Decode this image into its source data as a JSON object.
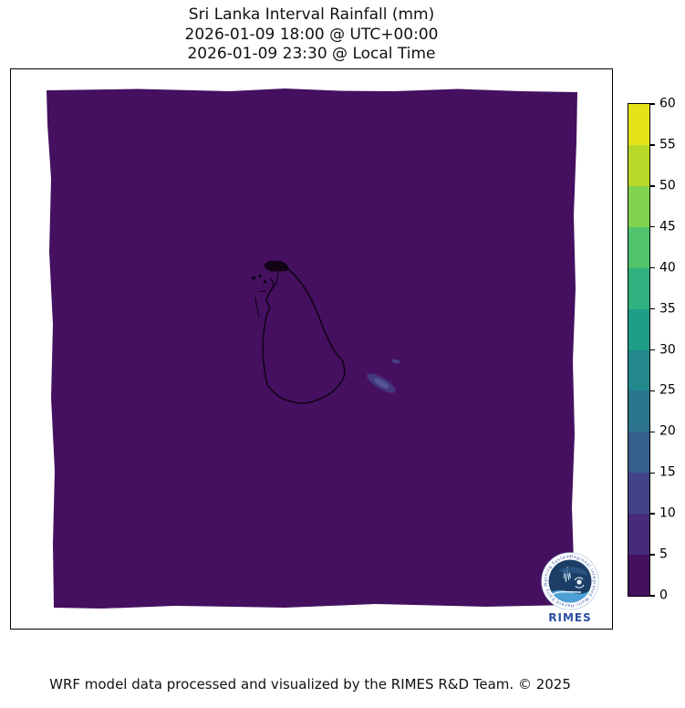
{
  "title": {
    "line1": "Sri Lanka Interval Rainfall (mm)",
    "line2": "2026-01-09 18:00 @ UTC+00:00",
    "line3": "2026-01-09 23:30 @ Local Time"
  },
  "footer": "WRF model data processed and visualized by the RIMES R&D Team. © 2025",
  "logo": {
    "label": "RIMES",
    "ring_text": "Regional Integrated Multi-Hazard Early Warning System"
  },
  "colorbar": {
    "min": 0,
    "max": 60,
    "step": 5,
    "tick_labels": [
      "0",
      "5",
      "10",
      "15",
      "20",
      "25",
      "30",
      "35",
      "40",
      "45",
      "50",
      "55",
      "60"
    ],
    "segment_colors_bottom_to_top": [
      "#451060",
      "#472a7a",
      "#414287",
      "#355e8d",
      "#2b748e",
      "#23898e",
      "#1e9d89",
      "#2eb17e",
      "#50c46a",
      "#81d34d",
      "#bada2b",
      "#e6e419"
    ]
  },
  "chart_data": {
    "type": "heatmap",
    "title": "Sri Lanka Interval Rainfall (mm)",
    "valid_time_utc": "2026-01-09 18:00 @ UTC+00:00",
    "valid_time_local": "2026-01-09 23:30 @ Local Time",
    "units": "mm",
    "colormap": "viridis (12 discrete bins)",
    "levels": [
      0,
      5,
      10,
      15,
      20,
      25,
      30,
      35,
      40,
      45,
      50,
      55,
      60
    ],
    "legend_position": "vertical colorbar, right side",
    "domain_shape": "slightly rotated rectangular WRF model grid over Sri Lanka and surrounding ocean",
    "overlay": "black Sri Lanka coastline outline",
    "field_summary": [
      {
        "region": "entire model domain background",
        "rainfall_mm": "0-5"
      },
      {
        "region": "small elongated patch offshore, southeast of Sri Lanka",
        "rainfall_mm": "5-10"
      },
      {
        "region": "tiny spot just northeast of that patch",
        "rainfall_mm": "5-10"
      }
    ]
  }
}
